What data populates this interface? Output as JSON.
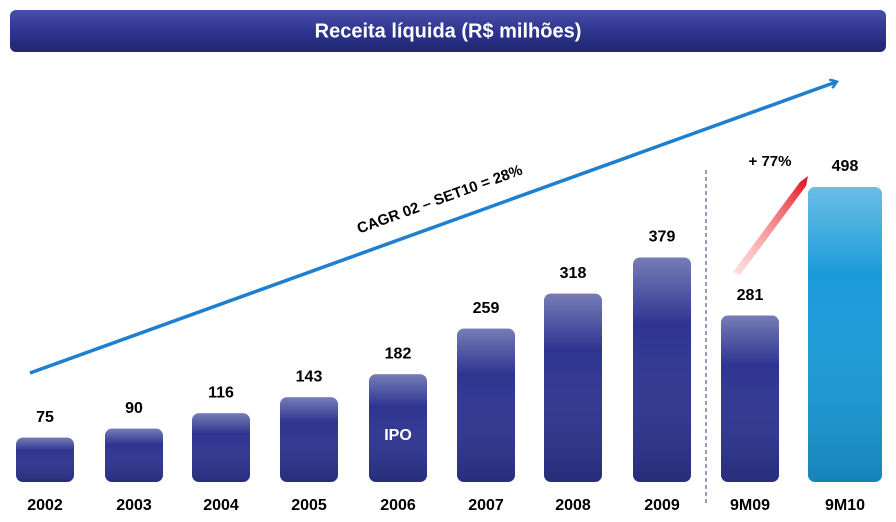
{
  "chart_data": {
    "type": "bar",
    "title": "Receita líquida (R$ milhões)",
    "categories": [
      "2002",
      "2003",
      "2004",
      "2005",
      "2006",
      "2007",
      "2008",
      "2009",
      "9M09",
      "9M10"
    ],
    "values": [
      75,
      90,
      116,
      143,
      182,
      259,
      318,
      379,
      281,
      498
    ],
    "colors": [
      "#2e3590",
      "#2e3590",
      "#2e3590",
      "#2e3590",
      "#2e3590",
      "#2e3590",
      "#2e3590",
      "#2e3590",
      "#2e3590",
      "#1a9bd9"
    ],
    "bar_note": "IPO",
    "trend_label": "CAGR 02 – SET10 =   28%",
    "growth_label": "+ 77%"
  }
}
